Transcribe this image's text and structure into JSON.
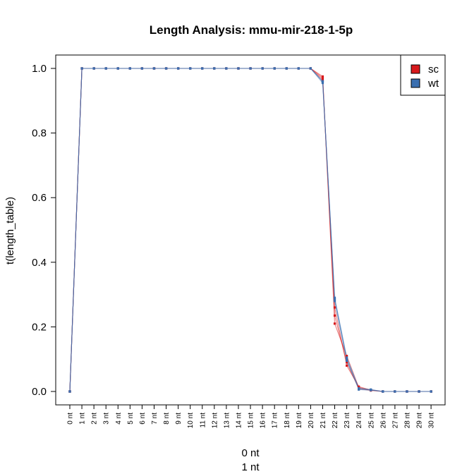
{
  "chart_data": {
    "type": "line",
    "title": "Length Analysis: mmu-mir-218-1-5p",
    "ylabel": "t(length_table)",
    "xlabel_lines": [
      "0 nt",
      "1 nt"
    ],
    "categories": [
      "0 nt",
      "1 nt",
      "2 nt",
      "3 nt",
      "4 nt",
      "5 nt",
      "6 nt",
      "7 nt",
      "8 nt",
      "9 nt",
      "10 nt",
      "11 nt",
      "12 nt",
      "13 nt",
      "14 nt",
      "15 nt",
      "16 nt",
      "17 nt",
      "18 nt",
      "19 nt",
      "20 nt",
      "21 nt",
      "22 nt",
      "23 nt",
      "24 nt",
      "25 nt",
      "26 nt",
      "27 nt",
      "28 nt",
      "29 nt",
      "30 nt"
    ],
    "yticks": [
      "0.0",
      "0.2",
      "0.4",
      "0.6",
      "0.8",
      "1.0"
    ],
    "ylim": [
      -0.04,
      1.04
    ],
    "legend_position": "top-right",
    "series": [
      {
        "name": "sc",
        "color": "#d7191c",
        "replicates": [
          [
            0,
            1,
            1,
            1,
            1,
            1,
            1,
            1,
            1,
            1,
            1,
            1,
            1,
            1,
            1,
            1,
            1,
            1,
            1,
            1,
            1,
            0.975,
            0.21,
            0.11,
            0.012,
            0.005,
            0,
            0,
            0,
            0,
            0
          ],
          [
            0,
            1,
            1,
            1,
            1,
            1,
            1,
            1,
            1,
            1,
            1,
            1,
            1,
            1,
            1,
            1,
            1,
            1,
            1,
            1,
            1,
            0.97,
            0.235,
            0.09,
            0.008,
            0.003,
            0,
            0,
            0,
            0,
            0
          ],
          [
            0,
            1,
            1,
            1,
            1,
            1,
            1,
            1,
            1,
            1,
            1,
            1,
            1,
            1,
            1,
            1,
            1,
            1,
            1,
            1,
            1,
            0.965,
            0.26,
            0.08,
            0.015,
            0.004,
            0,
            0,
            0,
            0,
            0
          ]
        ]
      },
      {
        "name": "wt",
        "color": "#3a6fb0",
        "replicates": [
          [
            0,
            1,
            1,
            1,
            1,
            1,
            1,
            1,
            1,
            1,
            1,
            1,
            1,
            1,
            1,
            1,
            1,
            1,
            1,
            1,
            1,
            0.96,
            0.29,
            0.105,
            0.01,
            0.006,
            0,
            0,
            0,
            0,
            0
          ],
          [
            0,
            1,
            1,
            1,
            1,
            1,
            1,
            1,
            1,
            1,
            1,
            1,
            1,
            1,
            1,
            1,
            1,
            1,
            1,
            1,
            1,
            0.955,
            0.285,
            0.1,
            0.006,
            0.004,
            0,
            0,
            0,
            0,
            0
          ],
          [
            0,
            1,
            1,
            1,
            1,
            1,
            1,
            1,
            1,
            1,
            1,
            1,
            1,
            1,
            1,
            1,
            1,
            1,
            1,
            1,
            1,
            0.96,
            0.28,
            0.095,
            0.009,
            0.005,
            0,
            0,
            0,
            0,
            0
          ]
        ]
      }
    ]
  }
}
